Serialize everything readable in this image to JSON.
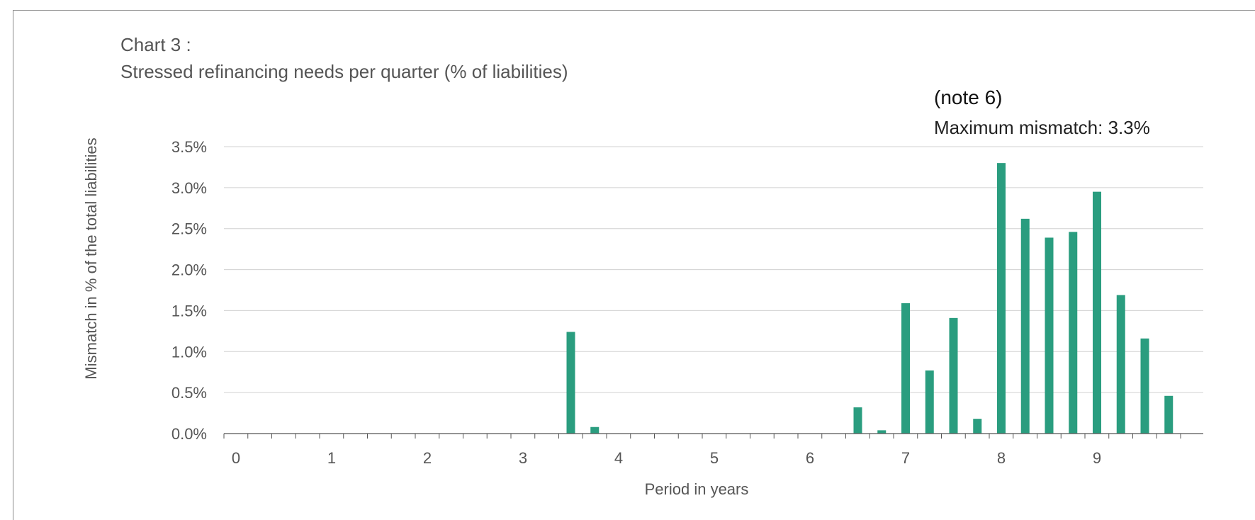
{
  "chart_data": {
    "type": "bar",
    "title_line1": "Chart 3 :",
    "title_line2": "Stressed refinancing needs per quarter  (% of liabilities)",
    "annotation_title": "(note 6)",
    "annotation_text": "Maximum mismatch: 3.3%",
    "xlabel": "Period in years",
    "ylabel": "Mismatch in % of the total liabilities",
    "ylim": [
      0,
      3.5
    ],
    "yticks": [
      "0.0%",
      "0.5%",
      "1.0%",
      "1.5%",
      "2.0%",
      "2.5%",
      "3.0%",
      "3.5%"
    ],
    "xticks": [
      "0",
      "1",
      "2",
      "3",
      "4",
      "5",
      "6",
      "7",
      "8",
      "9"
    ],
    "grid": true,
    "color": "#2a9d7f",
    "x": [
      3.5,
      3.75,
      6.5,
      6.75,
      7.0,
      7.25,
      7.5,
      7.75,
      8.0,
      8.25,
      8.5,
      8.75,
      9.0,
      9.25,
      9.5,
      9.75
    ],
    "values": [
      1.24,
      0.08,
      0.32,
      0.04,
      1.59,
      0.77,
      1.41,
      0.18,
      3.3,
      2.62,
      2.39,
      2.46,
      2.95,
      1.69,
      1.16,
      0.46
    ]
  }
}
